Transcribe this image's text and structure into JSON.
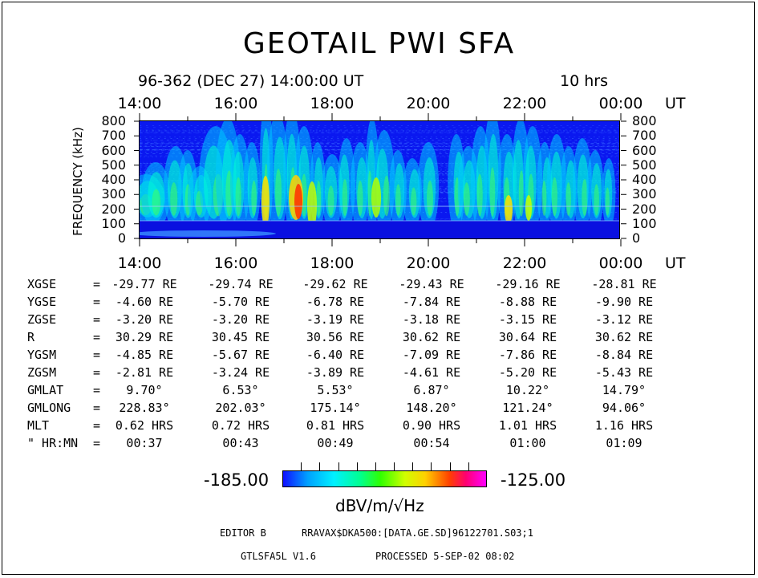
{
  "title": "GEOTAIL PWI SFA",
  "subtitle": "96-362 (DEC 27) 14:00:00 UT",
  "duration": "10 hrs",
  "time_axis_unit": "UT",
  "chart_data": {
    "type": "heatmap",
    "title": "GEOTAIL PWI SFA",
    "ylabel": "FREQUENCY (kHz)",
    "xlabel": "UT",
    "x_ticks": [
      "14:00",
      "16:00",
      "18:00",
      "20:00",
      "22:00",
      "00:00"
    ],
    "y_ticks": [
      "800",
      "700",
      "600",
      "500",
      "400",
      "300",
      "200",
      "100",
      "0"
    ],
    "ylim": [
      0,
      800
    ],
    "colorbar": {
      "min_label": "-185.00",
      "max_label": "-125.00",
      "unit": "dBV/m/√Hz"
    }
  },
  "ephemeris": {
    "rows": [
      {
        "label": "XGSE",
        "eq": "=",
        "values": [
          "-29.77 RE",
          "-29.74 RE",
          "-29.62 RE",
          "-29.43 RE",
          "-29.16 RE",
          "-28.81 RE"
        ]
      },
      {
        "label": "YGSE",
        "eq": "=",
        "values": [
          "-4.60 RE",
          "-5.70 RE",
          "-6.78 RE",
          "-7.84 RE",
          "-8.88 RE",
          "-9.90 RE"
        ]
      },
      {
        "label": "ZGSE",
        "eq": "=",
        "values": [
          "-3.20 RE",
          "-3.20 RE",
          "-3.19 RE",
          "-3.18 RE",
          "-3.15 RE",
          "-3.12 RE"
        ]
      },
      {
        "label": "R",
        "eq": "=",
        "values": [
          "30.29 RE",
          "30.45 RE",
          "30.56 RE",
          "30.62 RE",
          "30.64 RE",
          "30.62 RE"
        ]
      },
      {
        "label": "YGSM",
        "eq": "=",
        "values": [
          "-4.85 RE",
          "-5.67 RE",
          "-6.40 RE",
          "-7.09 RE",
          "-7.86 RE",
          "-8.84 RE"
        ]
      },
      {
        "label": "ZGSM",
        "eq": "=",
        "values": [
          "-2.81 RE",
          "-3.24 RE",
          "-3.89 RE",
          "-4.61 RE",
          "-5.20 RE",
          "-5.43 RE"
        ]
      },
      {
        "label": "GMLAT",
        "eq": "=",
        "values": [
          "9.70°",
          "6.53°",
          "5.53°",
          "6.87°",
          "10.22°",
          "14.79°"
        ]
      },
      {
        "label": "GMLONG",
        "eq": "=",
        "values": [
          "228.83°",
          "202.03°",
          "175.14°",
          "148.20°",
          "121.24°",
          "94.06°"
        ]
      },
      {
        "label": "MLT",
        "eq": "=",
        "values": [
          "0.62 HRS",
          "0.72 HRS",
          "0.81 HRS",
          "0.90 HRS",
          "1.01 HRS",
          "1.16 HRS"
        ]
      },
      {
        "label": "\" HR:MN",
        "eq": "=",
        "values": [
          "00:37",
          "00:43",
          "00:49",
          "00:54",
          "01:00",
          "01:09"
        ]
      }
    ]
  },
  "footer": {
    "editor": "EDITOR B",
    "path": "RRAVAX$DKA500:[DATA.GE.SD]96122701.S03;1",
    "version": "GTLSFA5L V1.6",
    "processed": "PROCESSED  5-SEP-02  08:02"
  }
}
